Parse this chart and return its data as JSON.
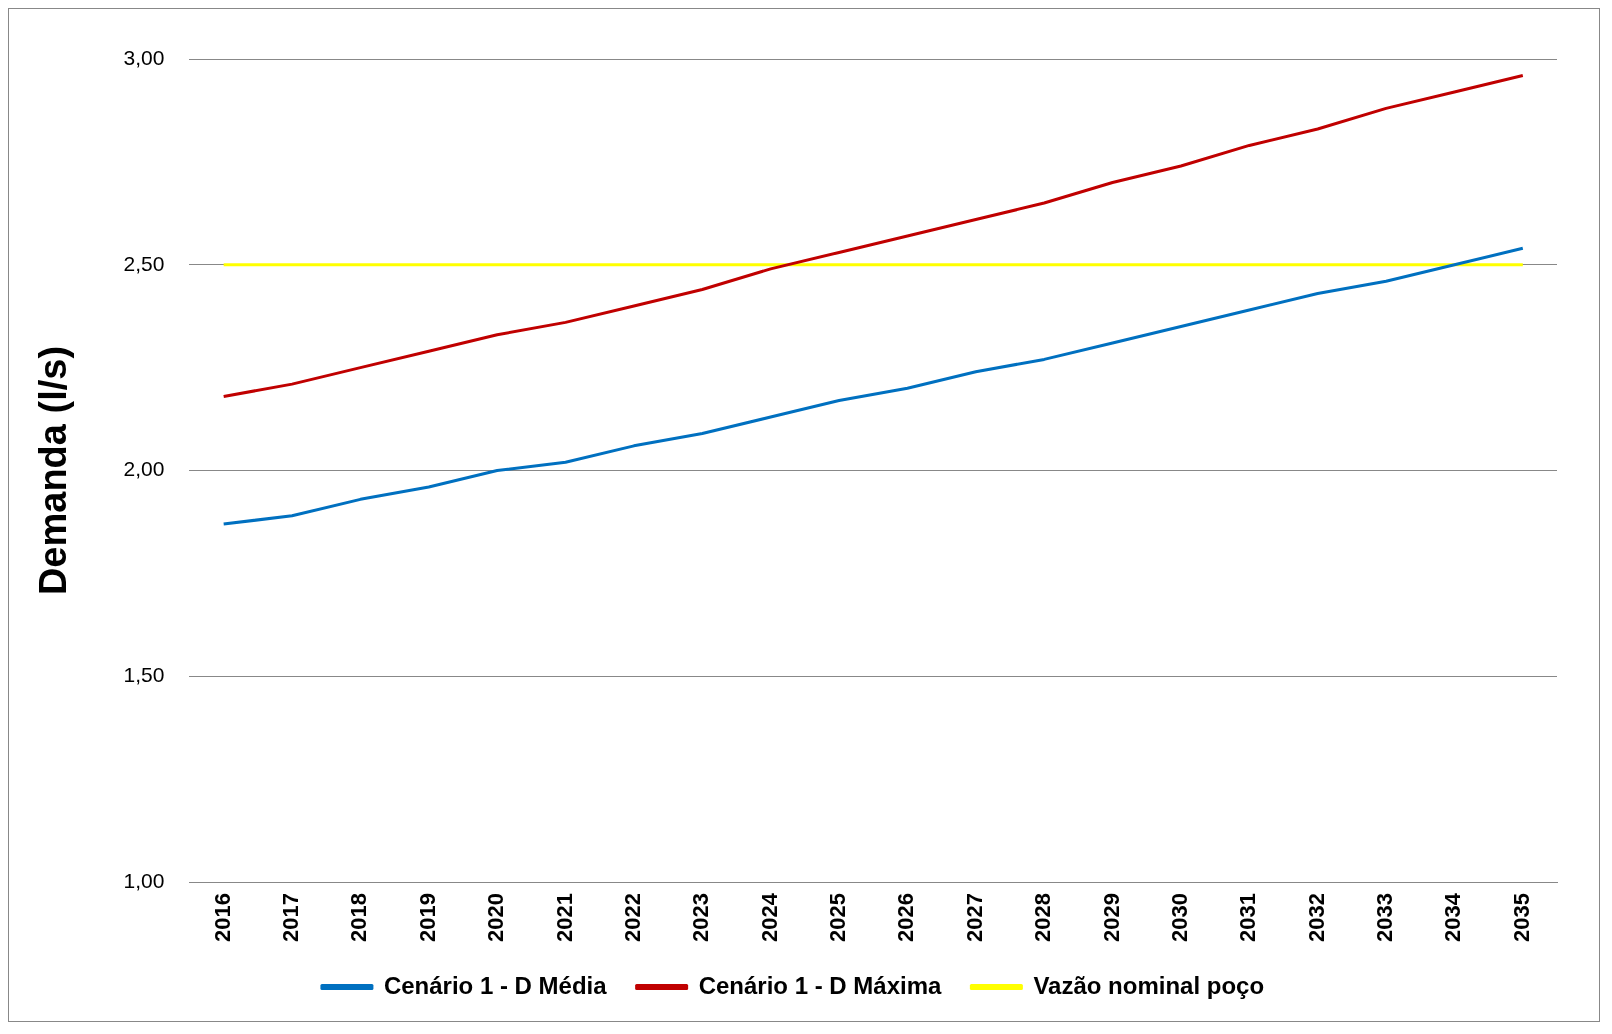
{
  "chart_data": {
    "type": "line",
    "ylabel": "Demanda (l/s)",
    "categories": [
      "2016",
      "2017",
      "2018",
      "2019",
      "2020",
      "2021",
      "2022",
      "2023",
      "2024",
      "2025",
      "2026",
      "2027",
      "2028",
      "2029",
      "2030",
      "2031",
      "2032",
      "2033",
      "2034",
      "2035"
    ],
    "series": [
      {
        "name": "Cenário 1 - D Média",
        "color": "#0070c0",
        "values": [
          1.87,
          1.89,
          1.93,
          1.96,
          2.0,
          2.02,
          2.06,
          2.09,
          2.13,
          2.17,
          2.2,
          2.24,
          2.27,
          2.31,
          2.35,
          2.39,
          2.43,
          2.46,
          2.5,
          2.54
        ]
      },
      {
        "name": "Cenário 1 - D Máxima",
        "color": "#c00000",
        "values": [
          2.18,
          2.21,
          2.25,
          2.29,
          2.33,
          2.36,
          2.4,
          2.44,
          2.49,
          2.53,
          2.57,
          2.61,
          2.65,
          2.7,
          2.74,
          2.79,
          2.83,
          2.88,
          2.92,
          2.96
        ]
      },
      {
        "name": "Vazão nominal poço",
        "color": "#ffff00",
        "values": [
          2.5,
          2.5,
          2.5,
          2.5,
          2.5,
          2.5,
          2.5,
          2.5,
          2.5,
          2.5,
          2.5,
          2.5,
          2.5,
          2.5,
          2.5,
          2.5,
          2.5,
          2.5,
          2.5,
          2.5
        ]
      }
    ],
    "ylim": [
      1,
      3
    ],
    "yticks": [
      {
        "value": 1,
        "label": "1,00"
      },
      {
        "value": 1.5,
        "label": "1,50"
      },
      {
        "value": 2,
        "label": "2,00"
      },
      {
        "value": 2.5,
        "label": "2,50"
      },
      {
        "value": 3,
        "label": "3,00"
      }
    ],
    "grid": "y",
    "legend": "bottom",
    "marker": "none",
    "line_style": "solid"
  }
}
